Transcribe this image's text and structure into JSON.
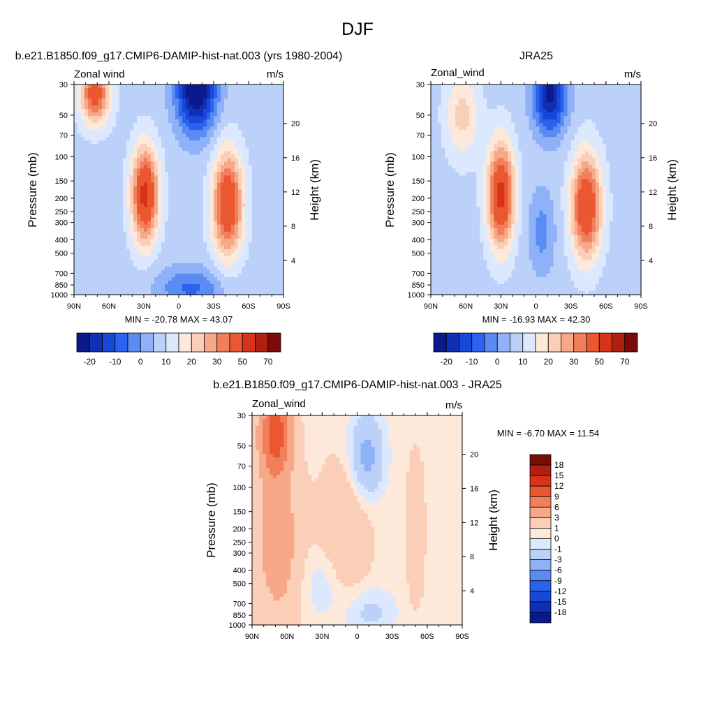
{
  "page_title": "DJF",
  "colors": {
    "main_scale": [
      "#0a1a8c",
      "#0f2fb4",
      "#1748d8",
      "#2c62ef",
      "#5a8bf3",
      "#8fb1f7",
      "#bcd1fa",
      "#dce8fd",
      "#fde9da",
      "#fbcfb7",
      "#f6a889",
      "#f17f5c",
      "#ea5730",
      "#d7331a",
      "#b02010",
      "#7a0c08"
    ],
    "diff_scale": [
      "#0a1a8c",
      "#0f2fb4",
      "#1748d8",
      "#2c62ef",
      "#5a8bf3",
      "#8fb1f7",
      "#bcd1fa",
      "#dce8fd",
      "#fde9da",
      "#fbcfb7",
      "#f6a889",
      "#f17f5c",
      "#ea5730",
      "#d7331a",
      "#b02010",
      "#7a0c08"
    ]
  },
  "chart_data": [
    {
      "type": "heatmap",
      "title": "b.e21.B1850.f09_g17.CMIP6-DAMIP-hist-nat.003 (yrs 1980-2004)",
      "left_label": "Zonal wind",
      "right_label": "m/s",
      "ylabel": "Pressure (mb)",
      "ylabel_right": "Height (km)",
      "x_ticks": [
        "90N",
        "60N",
        "30N",
        "0",
        "30S",
        "60S",
        "90S"
      ],
      "y_ticks": [
        "30",
        "50",
        "70",
        "100",
        "150",
        "200",
        "250",
        "300",
        "400",
        "500",
        "700",
        "850",
        "1000"
      ],
      "y_right_ticks": [
        "20",
        "16",
        "12",
        "8",
        "4"
      ],
      "stats": "MIN = -20.78  MAX =  43.07",
      "colorbar_labels": [
        "-20",
        "-10",
        "0",
        "10",
        "20",
        "30",
        "50",
        "70"
      ],
      "field": {
        "lats": [
          90,
          60,
          30,
          0,
          -30,
          -60,
          -90
        ],
        "features": [
          {
            "lat": 29,
            "p": 190,
            "amp": 40,
            "wlat": 8,
            "wz": 0.55
          },
          {
            "lat": 72,
            "p": 35,
            "amp": 32,
            "wlat": 9,
            "wz": 0.35
          },
          {
            "lat": -42,
            "p": 220,
            "amp": 37,
            "wlat": 9,
            "wz": 0.6
          },
          {
            "lat": -15,
            "p": 32,
            "amp": -36,
            "wlat": 12,
            "wz": 0.5
          },
          {
            "lat": -10,
            "p": 900,
            "amp": -14,
            "wlat": 20,
            "wz": 0.25
          }
        ],
        "base": 3.0
      }
    },
    {
      "type": "heatmap",
      "title": "JRA25",
      "left_label": "Zonal_wind",
      "right_label": "m/s",
      "ylabel": "Pressure (mb)",
      "ylabel_right": "Height (km)",
      "x_ticks": [
        "90N",
        "60N",
        "30N",
        "0",
        "30S",
        "60S",
        "90S"
      ],
      "y_ticks": [
        "30",
        "50",
        "70",
        "100",
        "150",
        "200",
        "250",
        "300",
        "400",
        "500",
        "700",
        "850",
        "1000"
      ],
      "y_right_ticks": [
        "20",
        "16",
        "12",
        "8",
        "4"
      ],
      "stats": "MIN = -16.93  MAX =  42.30",
      "colorbar_labels": [
        "-20",
        "-10",
        "0",
        "10",
        "20",
        "30",
        "50",
        "70"
      ],
      "field": {
        "lats": [
          90,
          60,
          30,
          0,
          -30,
          -60,
          -90
        ],
        "features": [
          {
            "lat": 30,
            "p": 190,
            "amp": 40,
            "wlat": 8,
            "wz": 0.6
          },
          {
            "lat": 63,
            "p": 50,
            "amp": 14,
            "wlat": 10,
            "wz": 0.5
          },
          {
            "lat": -43,
            "p": 230,
            "amp": 37,
            "wlat": 9,
            "wz": 0.6
          },
          {
            "lat": -12,
            "p": 35,
            "amp": -30,
            "wlat": 10,
            "wz": 0.45
          },
          {
            "lat": -5,
            "p": 350,
            "amp": -10,
            "wlat": 8,
            "wz": 0.5
          }
        ],
        "base": 3.0
      }
    },
    {
      "type": "heatmap",
      "title": "b.e21.B1850.f09_g17.CMIP6-DAMIP-hist-nat.003 - JRA25",
      "left_label": "Zonal_wind",
      "right_label": "m/s",
      "ylabel": "Pressure (mb)",
      "ylabel_right": "Height (km)",
      "x_ticks": [
        "90N",
        "60N",
        "30N",
        "0",
        "30S",
        "60S",
        "90S"
      ],
      "y_ticks": [
        "30",
        "50",
        "70",
        "100",
        "150",
        "200",
        "250",
        "300",
        "400",
        "500",
        "700",
        "850",
        "1000"
      ],
      "y_right_ticks": [
        "20",
        "16",
        "12",
        "8",
        "4"
      ],
      "stats": "MIN =  -6.70  MAX =  11.54",
      "colorbar_labels": [
        "18",
        "15",
        "12",
        "9",
        "6",
        "3",
        "1",
        "0",
        "-1",
        "-3",
        "-6",
        "-9",
        "-12",
        "-15",
        "-18"
      ],
      "field": {
        "lats": [
          90,
          60,
          30,
          0,
          -30,
          -60,
          -90
        ],
        "features": [
          {
            "lat": 70,
            "p": 40,
            "amp": 10,
            "wlat": 9,
            "wz": 0.5
          },
          {
            "lat": 68,
            "p": 250,
            "amp": 4,
            "wlat": 14,
            "wz": 1.0
          },
          {
            "lat": -8,
            "p": 60,
            "amp": -4.5,
            "wlat": 10,
            "wz": 0.5
          },
          {
            "lat": 10,
            "p": 200,
            "amp": 2.5,
            "wlat": 15,
            "wz": 0.8
          },
          {
            "lat": -50,
            "p": 200,
            "amp": 2.5,
            "wlat": 5,
            "wz": 0.8
          },
          {
            "lat": 30,
            "p": 500,
            "amp": -1.5,
            "wlat": 12,
            "wz": 0.4
          },
          {
            "lat": -10,
            "p": 800,
            "amp": -2,
            "wlat": 15,
            "wz": 0.3
          }
        ],
        "base": 0.5
      }
    }
  ]
}
